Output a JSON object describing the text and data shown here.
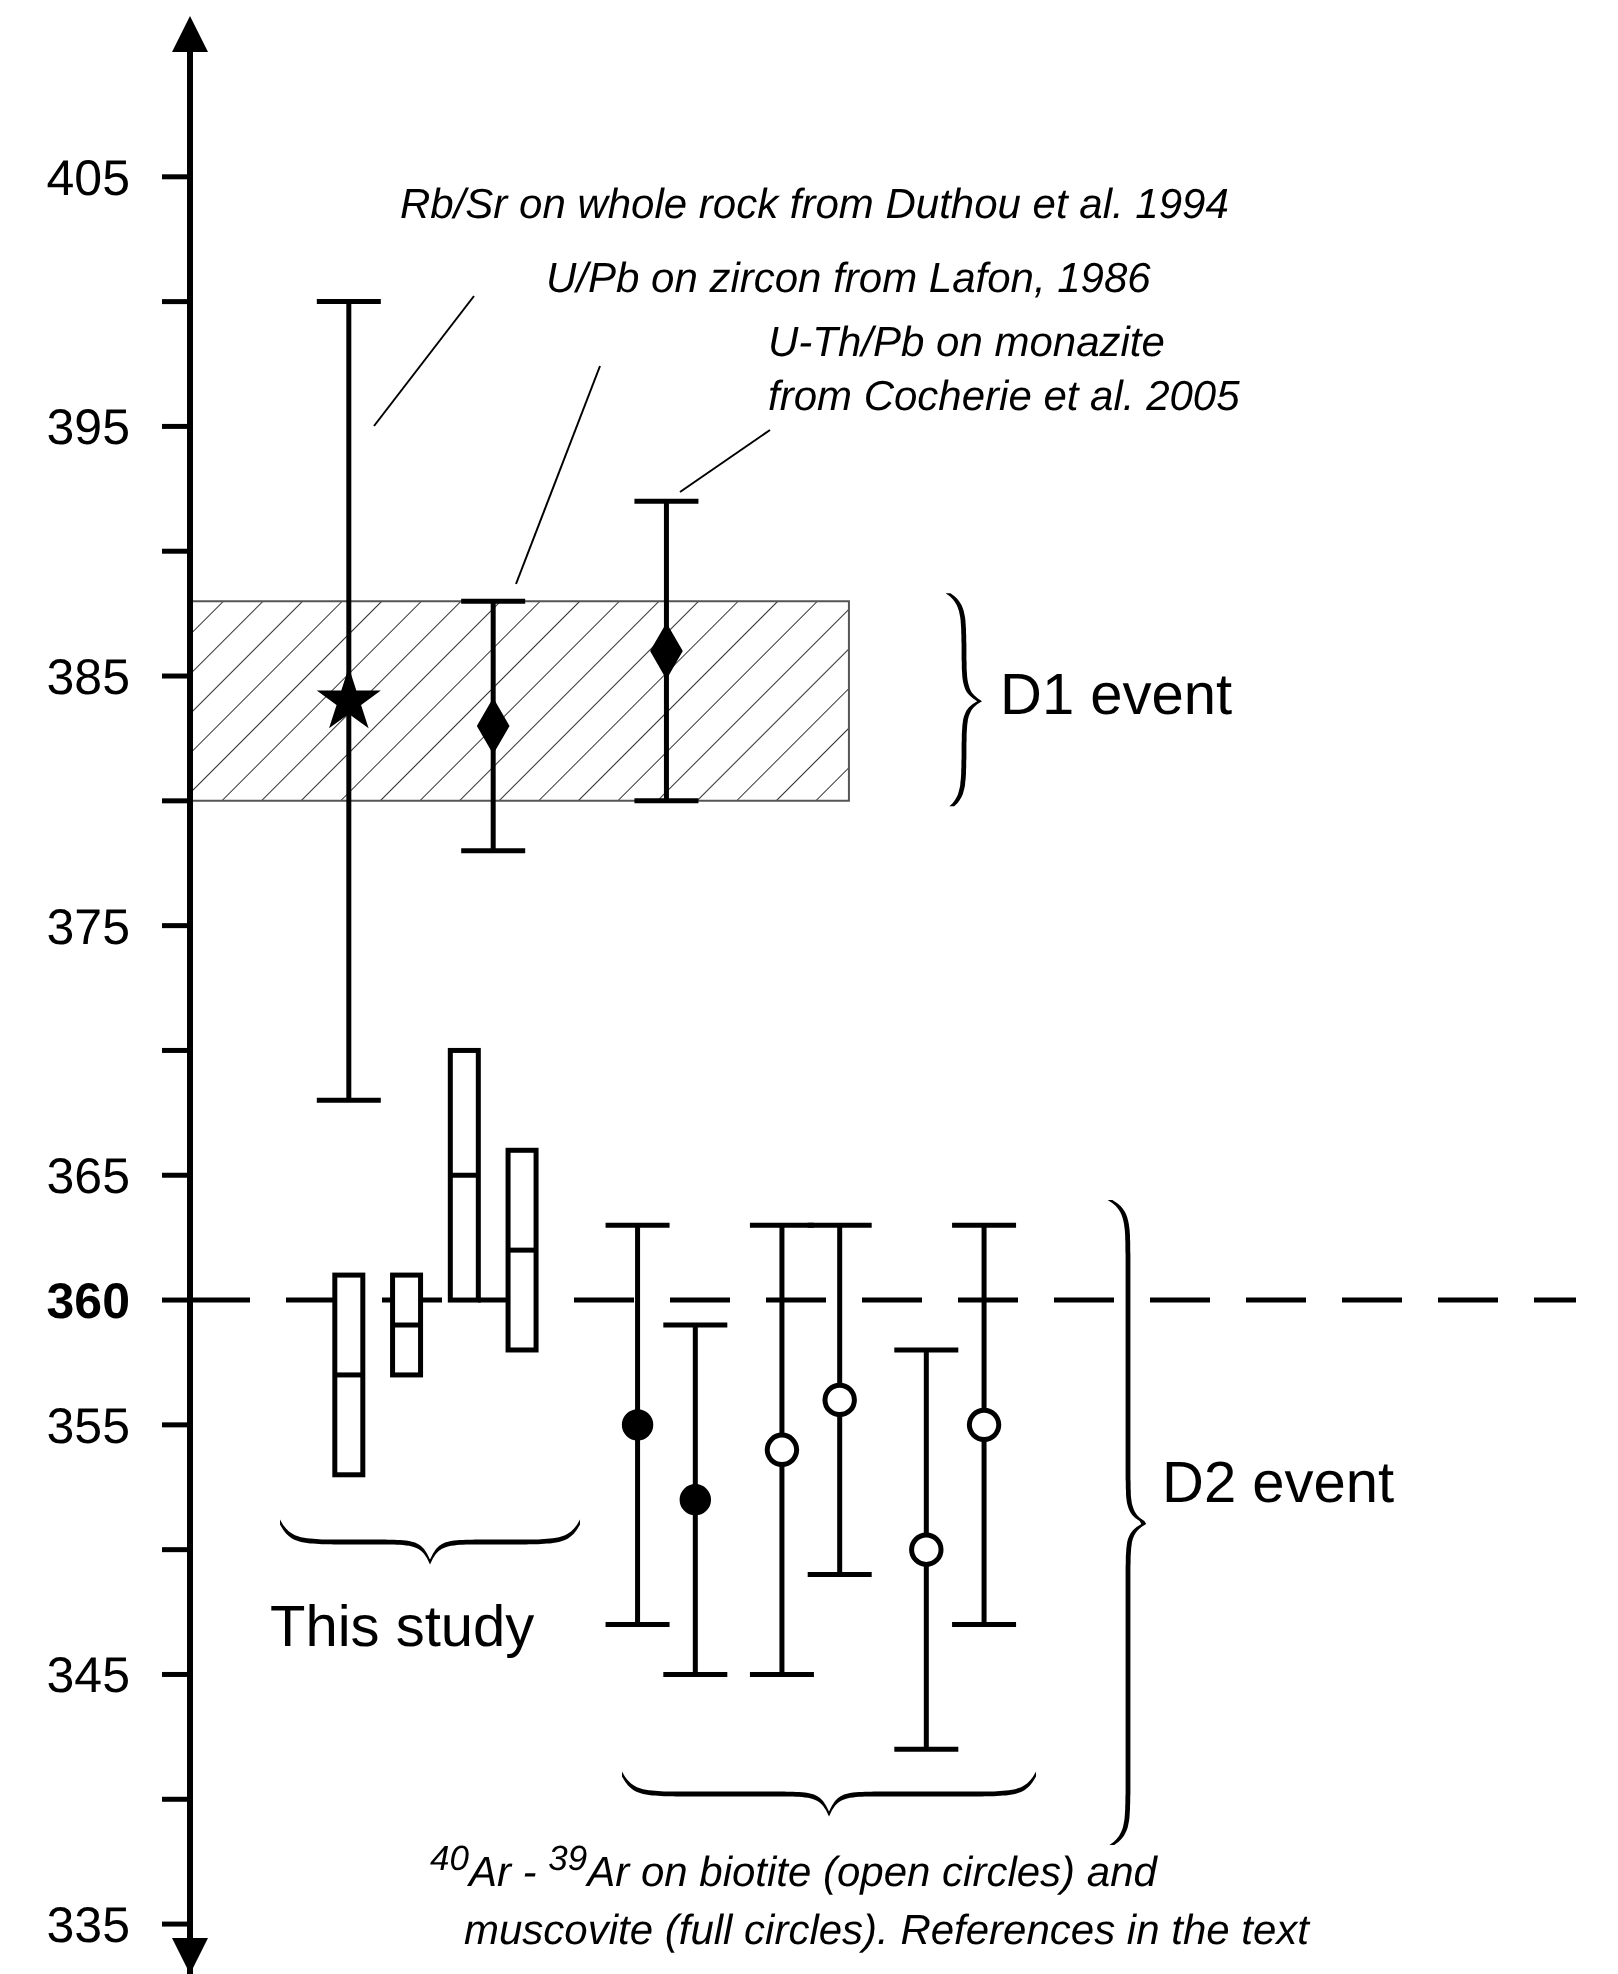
{
  "chart_data": {
    "type": "scatter",
    "categories": [
      null,
      null,
      null,
      null,
      null,
      null,
      null,
      null,
      null,
      null,
      null,
      null,
      null,
      null,
      null,
      null,
      null,
      null,
      null,
      null,
      null,
      null,
      null,
      null,
      null,
      null,
      null,
      null,
      null,
      null,
      null,
      null,
      null,
      null,
      null,
      null,
      null,
      null,
      null,
      null,
      null,
      null,
      null,
      null,
      null,
      null,
      null,
      null
    ],
    "ylim": [
      333,
      410
    ],
    "yticks": [
      405,
      {
        "value": 400,
        "label": null
      },
      395,
      {
        "value": 390,
        "label": null
      },
      385,
      {
        "value": 380,
        "label": null
      },
      375,
      {
        "value": 370,
        "label": null
      },
      365,
      360,
      355,
      {
        "value": 350,
        "label": null
      },
      345,
      {
        "value": 340,
        "label": null
      },
      335
    ],
    "tick_labels": "y",
    "grid": false,
    "legend": false,
    "series": [
      {
        "type": "box",
        "color": "#000000",
        "boxes": [
          null,
          null,
          null,
          null,
          null,
          {
            "low": 353,
            "q1": 353,
            "median": 357,
            "q3": 361,
            "high": 361
          },
          null,
          {
            "low": 357,
            "q1": 357,
            "median": 359,
            "q3": 361,
            "high": 361
          },
          null,
          {
            "low": 360,
            "q1": 360,
            "median": 365,
            "q3": 370,
            "high": 370
          },
          null,
          {
            "low": 358,
            "q1": 358,
            "median": 362,
            "q3": 366,
            "high": 366
          },
          null,
          null,
          null,
          null,
          null,
          null,
          null,
          null,
          null,
          null,
          null,
          null,
          null,
          null,
          null,
          null,
          null,
          null,
          null,
          null,
          null,
          null,
          null,
          null,
          null,
          null,
          null,
          null,
          null,
          null,
          null,
          null,
          null,
          null,
          null,
          null
        ]
      },
      {
        "type": "scatter",
        "marker": "star",
        "color": "#000000",
        "values": [
          null,
          null,
          null,
          null,
          null,
          384,
          null,
          null,
          null,
          null,
          null,
          null,
          null,
          null,
          null,
          null,
          null,
          null,
          null,
          null,
          null,
          null,
          null,
          null,
          null,
          null,
          null,
          null,
          null,
          null,
          null,
          null,
          null,
          null,
          null,
          null,
          null,
          null,
          null,
          null,
          null,
          null,
          null,
          null,
          null,
          null,
          null,
          null
        ],
        "errors": [
          null,
          null,
          null,
          null,
          null,
          16,
          null,
          null,
          null,
          null,
          null,
          null,
          null,
          null,
          null,
          null,
          null,
          null,
          null,
          null,
          null,
          null,
          null,
          null,
          null,
          null,
          null,
          null,
          null,
          null,
          null,
          null,
          null,
          null,
          null,
          null,
          null,
          null,
          null,
          null,
          null,
          null,
          null,
          null,
          null,
          null,
          null,
          null
        ]
      },
      {
        "type": "scatter",
        "marker": "diamond",
        "color": "#000000",
        "values": [
          null,
          null,
          null,
          null,
          null,
          null,
          null,
          null,
          null,
          null,
          383,
          null,
          null,
          null,
          null,
          null,
          386,
          null,
          null,
          null,
          null,
          null,
          null,
          null,
          null,
          null,
          null,
          null,
          null,
          null,
          null,
          null,
          null,
          null,
          null,
          null,
          null,
          null,
          null,
          null,
          null,
          null,
          null,
          null,
          null,
          null,
          null,
          null
        ],
        "errors": [
          null,
          null,
          null,
          null,
          null,
          null,
          null,
          null,
          null,
          null,
          5,
          null,
          null,
          null,
          null,
          null,
          6,
          null,
          null,
          null,
          null,
          null,
          null,
          null,
          null,
          null,
          null,
          null,
          null,
          null,
          null,
          null,
          null,
          null,
          null,
          null,
          null,
          null,
          null,
          null,
          null,
          null,
          null,
          null,
          null,
          null,
          null,
          null
        ]
      },
      {
        "type": "scatter",
        "marker": "circle",
        "color": "#000000",
        "values": [
          null,
          null,
          null,
          null,
          null,
          null,
          null,
          null,
          null,
          null,
          null,
          null,
          null,
          null,
          null,
          355,
          null,
          352,
          null,
          null,
          null,
          null,
          null,
          null,
          null,
          null,
          null,
          null,
          null,
          null,
          null,
          null,
          null,
          null,
          null,
          null,
          null,
          null,
          null,
          null,
          null,
          null,
          null,
          null,
          null,
          null,
          null,
          null
        ],
        "errors": [
          null,
          null,
          null,
          null,
          null,
          null,
          null,
          null,
          null,
          null,
          null,
          null,
          null,
          null,
          null,
          8,
          null,
          7,
          null,
          null,
          null,
          null,
          null,
          null,
          null,
          null,
          null,
          null,
          null,
          null,
          null,
          null,
          null,
          null,
          null,
          null,
          null,
          null,
          null,
          null,
          null,
          null,
          null,
          null,
          null,
          null,
          null,
          null
        ]
      },
      {
        "type": "scatter",
        "marker": "circle",
        "color": "#ffffff",
        "values": [
          null,
          null,
          null,
          null,
          null,
          null,
          null,
          null,
          null,
          null,
          null,
          null,
          null,
          null,
          null,
          null,
          null,
          null,
          null,
          null,
          354,
          null,
          356,
          null,
          null,
          350,
          null,
          355,
          null,
          null,
          null,
          null,
          null,
          null,
          null,
          null,
          null,
          null,
          null,
          null,
          null,
          null,
          null,
          null,
          null,
          null,
          null,
          null
        ],
        "errors": [
          null,
          null,
          null,
          null,
          null,
          null,
          null,
          null,
          null,
          null,
          null,
          null,
          null,
          null,
          null,
          null,
          null,
          null,
          null,
          null,
          9,
          null,
          7,
          null,
          null,
          8,
          null,
          8,
          null,
          null,
          null,
          null,
          null,
          null,
          null,
          null,
          null,
          null,
          null,
          null,
          null,
          null,
          null,
          null,
          null,
          null,
          null,
          null
        ]
      }
    ],
    "bands": [
      {
        "axis": "y",
        "from": 380,
        "to": 388,
        "label": "D1 event"
      }
    ],
    "ref_lines": [
      {
        "axis": "y",
        "value": 360,
        "line_style": "dashed",
        "color": "#000000"
      }
    ],
    "annotations": [
      "Rb/Sr on whole rock from Duthou et al. 1994",
      "U/Pb on zircon from Lafon, 1986",
      "U-Th/Pb on monazite from Cocherie et al. 2005",
      "This study",
      "$^{40}$Ar - $^{39}$Ar on biotite (open circles) and muscovite (full circles). References in the text",
      "D2 event"
    ]
  }
}
